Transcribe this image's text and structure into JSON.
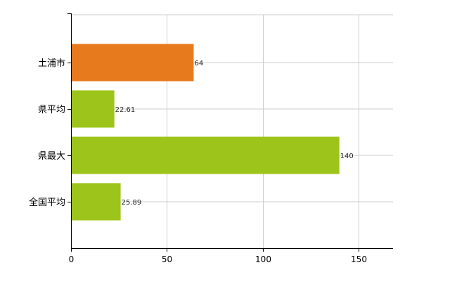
{
  "chart_data": {
    "type": "bar",
    "orientation": "horizontal",
    "categories": [
      "土浦市",
      "県平均",
      "県最大",
      "全国平均"
    ],
    "values": [
      64,
      22.61,
      140,
      25.89
    ],
    "data_labels": [
      "64",
      "22.61",
      "140",
      "25.89"
    ],
    "title": "",
    "xlabel": "",
    "ylabel": "",
    "xlim": [
      0,
      168
    ],
    "x_ticks": [
      0,
      50,
      100,
      150
    ],
    "x_tick_labels": [
      "0",
      "50",
      "100",
      "150"
    ],
    "grid": true,
    "legend": "none",
    "colors": {
      "highlight": "#e87a1e",
      "default": "#9dc41a",
      "highlight_index": 0
    }
  }
}
